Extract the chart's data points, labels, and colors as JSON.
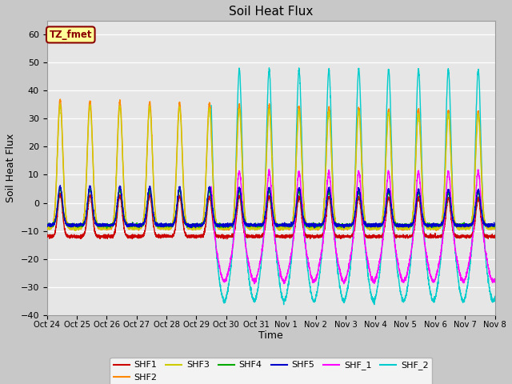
{
  "title": "Soil Heat Flux",
  "ylabel": "Soil Heat Flux",
  "xlabel": "Time",
  "ylim": [
    -40,
    65
  ],
  "yticks": [
    -40,
    -30,
    -20,
    -10,
    0,
    10,
    20,
    30,
    40,
    50,
    60
  ],
  "bg_color": "#d8d8d8",
  "plot_bg_color": "#e8e8e8",
  "tz_label": "TZ_fmet",
  "tz_bg": "#ffff99",
  "tz_border": "#8b0000",
  "series_colors": {
    "SHF1": "#cc0000",
    "SHF2": "#ff8800",
    "SHF3": "#cccc00",
    "SHF4": "#00aa00",
    "SHF5": "#0000cc",
    "SHF_1": "#ff00ff",
    "SHF_2": "#00cccc"
  },
  "x_tick_labels": [
    "Oct 24",
    "Oct 25",
    "Oct 26",
    "Oct 27",
    "Oct 28",
    "Oct 29",
    "Oct 30",
    "Oct 31",
    "Nov 1",
    "Nov 2",
    "Nov 3",
    "Nov 4",
    "Nov 5",
    "Nov 6",
    "Nov 7",
    "Nov 8"
  ],
  "num_days": 15,
  "legend_rows": [
    [
      "SHF1",
      "SHF2",
      "SHF3",
      "SHF4",
      "SHF5",
      "SHF_1"
    ],
    [
      "SHF_2"
    ]
  ]
}
